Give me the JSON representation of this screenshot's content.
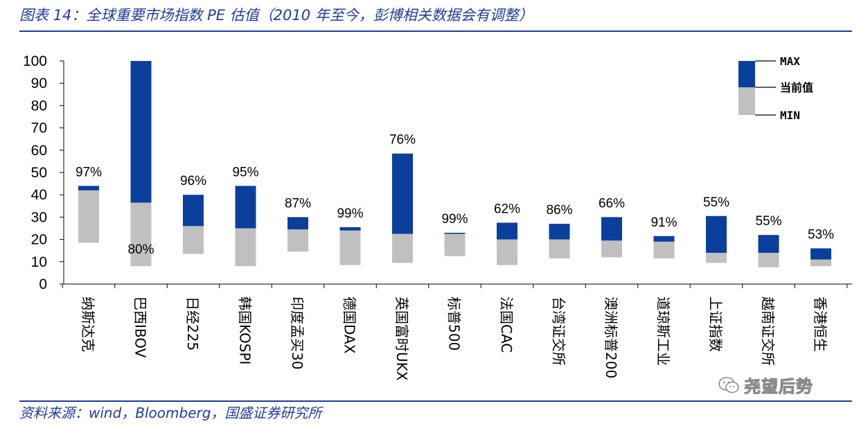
{
  "header": {
    "title": "图表 14：全球重要市场指数 PE 估值（2010 年至今，彭博相关数据会有调整）"
  },
  "footer": {
    "source": "资料来源：wind，Bloomberg，国盛证券研究所",
    "watermark": "尧望后势"
  },
  "colors": {
    "max": "#0a3f9c",
    "min": "#c0c0c0",
    "axis": "#000000",
    "text_blue": "#1f3d99"
  },
  "chart_data": {
    "type": "bar",
    "subtype": "floating-stacked-range",
    "ylim": [
      0,
      100
    ],
    "yticks": [
      0,
      10,
      20,
      30,
      40,
      50,
      60,
      70,
      80,
      90,
      100
    ],
    "grid": false,
    "legend_position": "top-right",
    "legend": {
      "max": "MAX",
      "current": "当前值",
      "min": "MIN"
    },
    "categories": [
      "纳斯达克",
      "巴西IBOV",
      "日经225",
      "韩国KOSPI",
      "印度孟买30",
      "德国DAX",
      "英国富时UKX",
      "标普500",
      "法国CAC",
      "台湾证交所",
      "澳洲标普200",
      "道琼斯工业",
      "上证指数",
      "越南证交所",
      "香港恒生"
    ],
    "min": [
      18.5,
      8,
      13.5,
      8,
      14.5,
      8.5,
      9.5,
      12.5,
      8.5,
      11.5,
      12,
      11.5,
      9.5,
      7.5,
      8
    ],
    "current": [
      42,
      36.5,
      26,
      25,
      24.5,
      24,
      22.5,
      22.5,
      20,
      20,
      19.5,
      19,
      14,
      14,
      11
    ],
    "max": [
      44,
      100,
      40,
      44,
      30,
      25.5,
      58.5,
      23,
      27.5,
      27,
      30,
      21.5,
      30.5,
      22,
      16
    ],
    "percentile_labels": [
      "97%",
      "80%",
      "96%",
      "95%",
      "87%",
      "99%",
      "76%",
      "99%",
      "62%",
      "86%",
      "66%",
      "91%",
      "55%",
      "55%",
      "53%"
    ]
  }
}
